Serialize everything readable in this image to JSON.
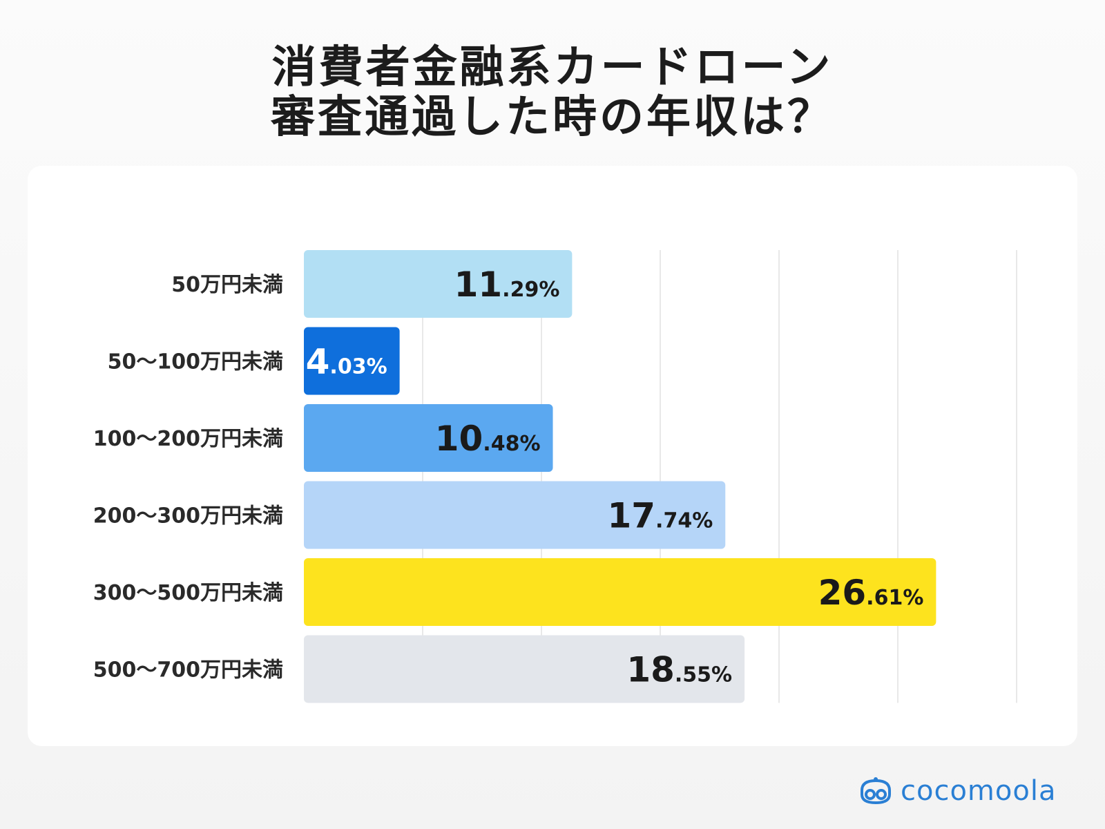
{
  "title": {
    "line1": "消費者金融系カードローン",
    "line2": "審査通過した時の年収は？"
  },
  "brand": {
    "name": "cocomoola",
    "icon": "cocomoola-logo-icon",
    "color": "#2a7fd4"
  },
  "chart_data": {
    "type": "bar",
    "orientation": "horizontal",
    "title": "消費者金融系カードローン 審査通過した時の年収は？",
    "xlabel": "",
    "ylabel": "",
    "xlim": [
      0,
      30
    ],
    "grid": true,
    "unit": "%",
    "categories": [
      "50万円未満",
      "50〜100万円未満",
      "100〜200万円未満",
      "200〜300万円未満",
      "300〜500万円未満",
      "500〜700万円未満"
    ],
    "values": [
      11.29,
      4.03,
      10.48,
      17.74,
      26.61,
      18.55
    ],
    "labels": [
      {
        "int": "11",
        "dec": ".29%"
      },
      {
        "int": "4",
        "dec": ".03%"
      },
      {
        "int": "10",
        "dec": ".48%"
      },
      {
        "int": "17",
        "dec": ".74%"
      },
      {
        "int": "26",
        "dec": ".61%"
      },
      {
        "int": "18",
        "dec": ".55%"
      }
    ],
    "colors": [
      "#b2dff4",
      "#0f6fdc",
      "#5ba8f0",
      "#b5d5f8",
      "#fde31e",
      "#e3e6eb"
    ],
    "label_colors": [
      "#1a1a1a",
      "#ffffff",
      "#1a1a1a",
      "#1a1a1a",
      "#1a1a1a",
      "#1a1a1a"
    ]
  }
}
